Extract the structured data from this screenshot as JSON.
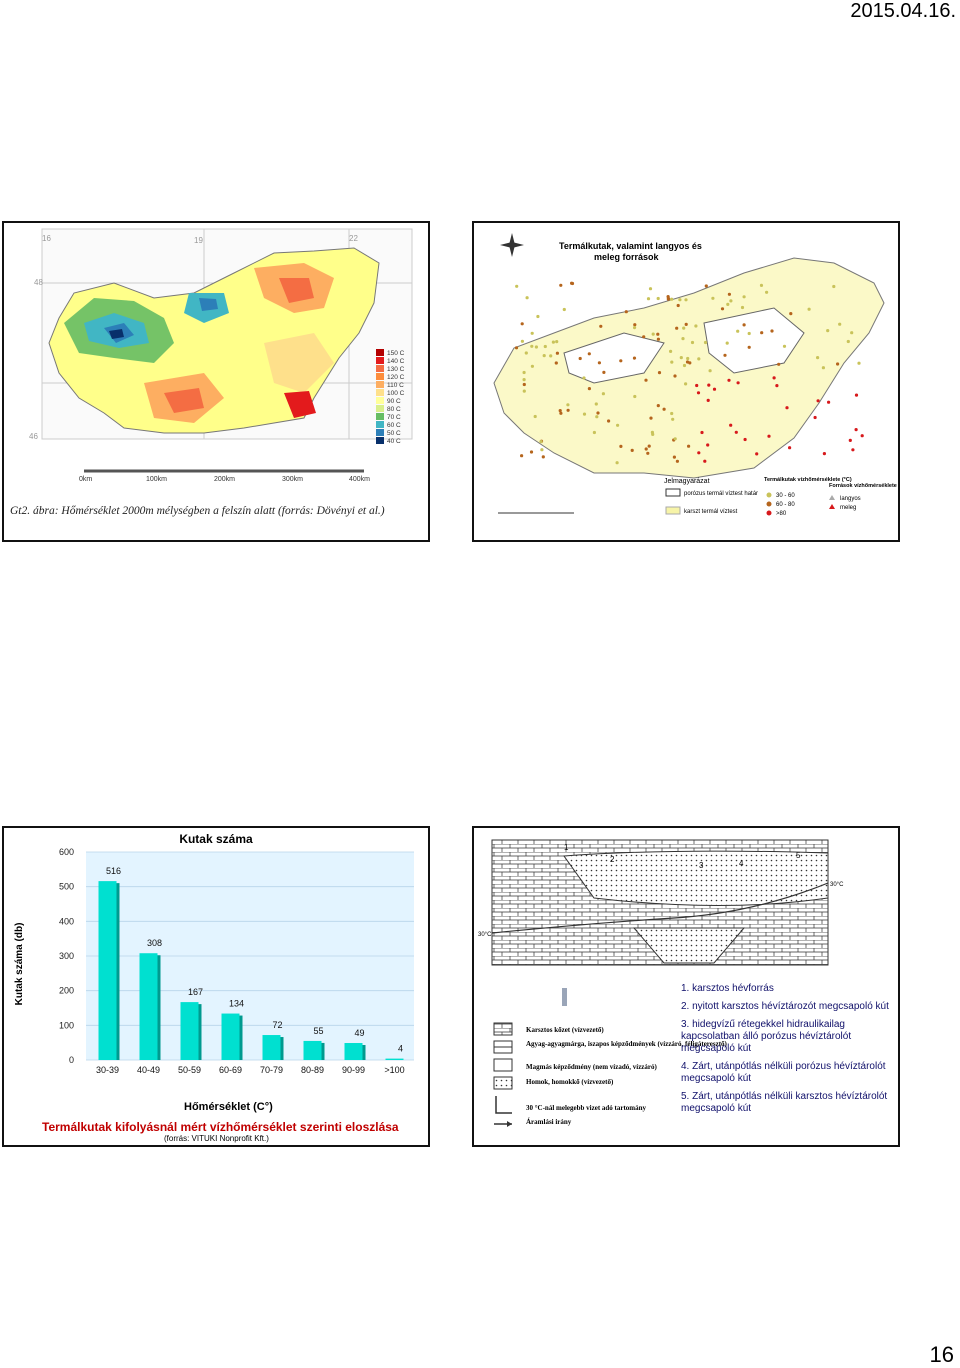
{
  "header": {
    "date": "2015.04.16."
  },
  "footer": {
    "page_number": "16"
  },
  "panel1": {
    "caption": "Gt2. ábra: Hőmérséklet 2000m mélységben a felszín alatt (forrás: Dövényi et al.)",
    "grid_top": [
      "16",
      "19",
      "22"
    ],
    "grid_side": [
      "48",
      "46"
    ],
    "scale": [
      "0km",
      "100km",
      "200km",
      "300km",
      "400km"
    ],
    "legend": [
      {
        "label": "150 C",
        "color": "#b30000"
      },
      {
        "label": "140 C",
        "color": "#e31a1c"
      },
      {
        "label": "130 C",
        "color": "#f46d43"
      },
      {
        "label": "120 C",
        "color": "#fd8d3c"
      },
      {
        "label": "110 C",
        "color": "#fdae61"
      },
      {
        "label": "100 C",
        "color": "#fee08b"
      },
      {
        "label": "90 C",
        "color": "#ffff99"
      },
      {
        "label": "80 C",
        "color": "#d9ef8b"
      },
      {
        "label": "70 C",
        "color": "#66bd63"
      },
      {
        "label": "60 C",
        "color": "#41b6c4"
      },
      {
        "label": "50 C",
        "color": "#2c7fb8"
      },
      {
        "label": "40 C",
        "color": "#08306b"
      }
    ]
  },
  "panel2": {
    "title_line1": "Termálkutak, valamint langyos és",
    "title_line2": "meleg források",
    "legend_title": "Jelmagyarázat",
    "porous_label": "porózus termál víztest határ",
    "karst_label": "karszt termál víztest",
    "wells_title": "Termálkutak vízhőmérséklete (°C)",
    "wells": [
      "30 - 60",
      "60 - 80",
      ">80"
    ],
    "springs_title": "Források vízhőmérséklete",
    "springs": [
      "langyos",
      "meleg"
    ],
    "colors": {
      "porous": "#ffffff",
      "karst": "#f7f4a8",
      "well_low": "#c9c35a",
      "well_mid": "#b5651d",
      "well_high": "#d7191c"
    }
  },
  "chart_data": {
    "type": "bar",
    "title": "Kutak száma",
    "xlabel": "Hőmérséklet (C°)",
    "ylabel": "Kutak száma (db)",
    "categories": [
      "30-39",
      "40-49",
      "50-59",
      "60-69",
      "70-79",
      "80-89",
      "90-99",
      ">100"
    ],
    "values": [
      516,
      308,
      167,
      134,
      72,
      55,
      49,
      4
    ],
    "yticks": [
      0,
      100,
      200,
      300,
      400,
      500,
      600
    ],
    "ylim": [
      0,
      600
    ],
    "bar_color": "#00e0d0",
    "caption": "Termálkutak kifolyásnál mért vízhőmérséklet szerinti eloszlása",
    "source": "(forrás: VITUKI Nonprofit Kft.)"
  },
  "panel4": {
    "section_numbers": [
      "1",
      "2",
      "3",
      "4",
      "5"
    ],
    "temp_label_right": "30°C",
    "temp_label_left": "30°C",
    "legend": [
      "Karsztos kőzet (vízvezető)",
      "Agyag-agyagmárga, iszapos képződmények (vízzáró, féligáteresztő)",
      "Magmás képződmény (nem vízadó, vízzáró)",
      "Homok, homokkő (vízvezető)",
      "30 °C-nál melegebb vizet adó tartomány",
      "Áramlási irány"
    ],
    "items": [
      "1. karsztos hévforrás",
      "2. nyitott  karsztos hévíztározót megcsapoló kút",
      "3. hidegvízű rétegekkel hidraulikailag kapcsolatban álló porózus hévíztárolót megcsapoló kút",
      "4. Zárt, utánpótlás nélküli porózus hévíztárolót megcsapoló kút",
      "5. Zárt, utánpótlás nélküli karsztos hévíztárolót megcsapoló kút"
    ]
  }
}
